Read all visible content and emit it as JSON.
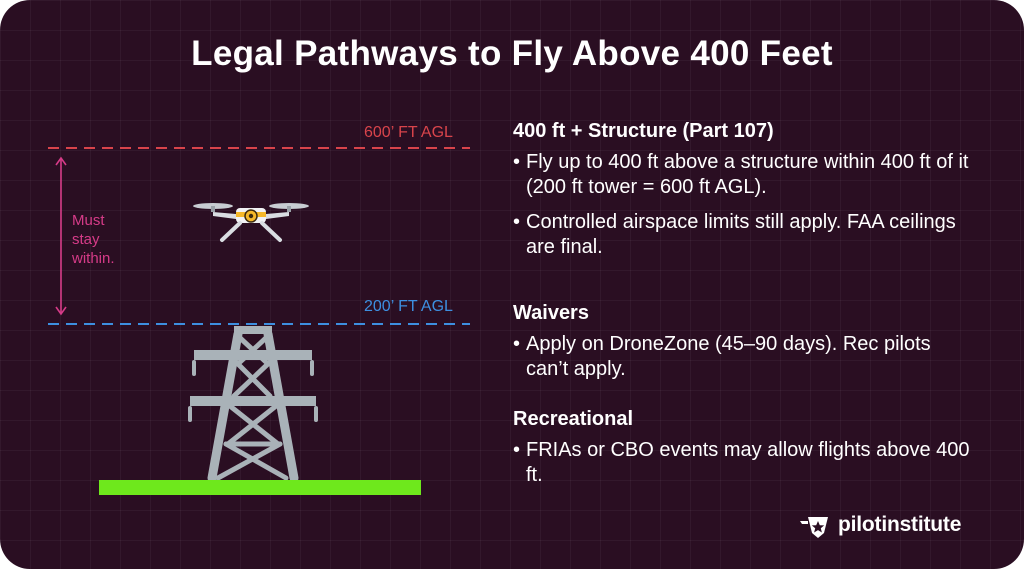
{
  "title": "Legal Pathways to Fly Above 400 Feet",
  "diagram": {
    "upper_line_label": "600’ FT AGL",
    "lower_line_label": "200’ FT AGL",
    "range_note": [
      "Must",
      "stay",
      "within."
    ],
    "colors": {
      "upper_line": "#d8444b",
      "lower_line": "#3d8fe0",
      "range_arrow": "#d63b88",
      "ground": "#6ee81c",
      "tower": "#a9b2b8",
      "drone_accent": "#f5b82a",
      "background": "#2a0e22"
    },
    "icons": [
      "drone-icon",
      "transmission-tower-icon"
    ]
  },
  "sections": [
    {
      "heading": "400 ft + Structure (Part 107)",
      "bullets": [
        "Fly up to 400 ft above a structure within 400 ft of it (200 ft tower = 600 ft AGL).",
        "Controlled airspace limits still apply. FAA ceilings are final."
      ]
    },
    {
      "heading": "Waivers",
      "bullets": [
        "Apply on DroneZone (45–90 days). Rec pilots can’t apply."
      ]
    },
    {
      "heading": "Recreational",
      "bullets": [
        "FRIAs or CBO events may allow flights above 400 ft."
      ]
    }
  ],
  "brand": {
    "name": "pilotinstitute",
    "icon": "star-wing-logo-icon"
  }
}
